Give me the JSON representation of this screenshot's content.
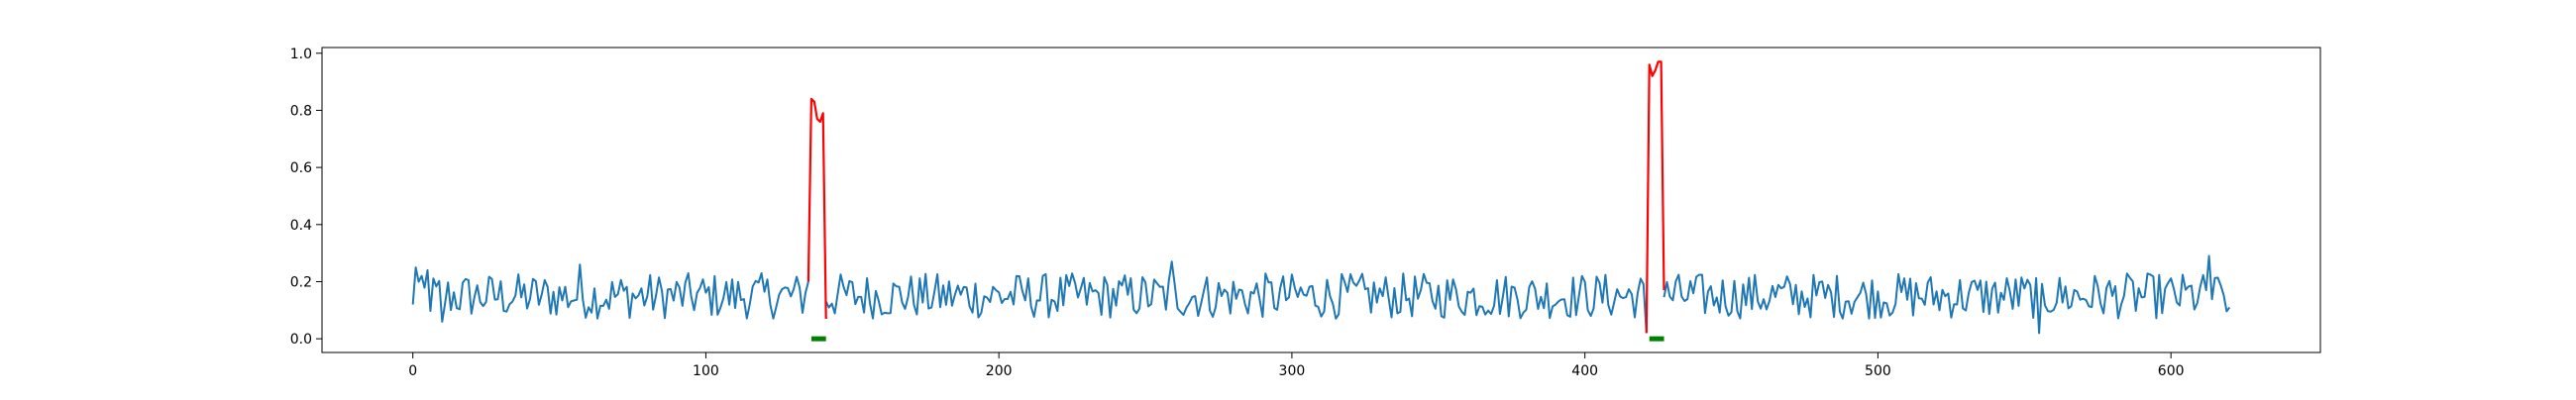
{
  "chart_data": {
    "type": "line",
    "title": "",
    "xlabel": "",
    "ylabel": "",
    "xlim": [
      -31,
      651
    ],
    "ylim": [
      -0.048,
      1.02
    ],
    "grid": false,
    "legend": "none",
    "xticks": [
      0,
      100,
      200,
      300,
      400,
      500,
      600
    ],
    "yticks": [
      0.0,
      0.2,
      0.4,
      0.6,
      0.8,
      1.0
    ],
    "xtick_labels": [
      "0",
      "100",
      "200",
      "300",
      "400",
      "500",
      "600"
    ],
    "ytick_labels": [
      "0.0",
      "0.2",
      "0.4",
      "0.6",
      "0.8",
      "1.0"
    ],
    "n_points": 621,
    "baseline_mean": 0.15,
    "baseline_spread": 0.08,
    "series": [
      {
        "role": "signal",
        "color": "#1f77b4",
        "x_range": [
          0,
          620
        ],
        "sample_points": [
          {
            "x": 0,
            "y": 0.12
          },
          {
            "x": 1,
            "y": 0.25
          },
          {
            "x": 2,
            "y": 0.2
          },
          {
            "x": 3,
            "y": 0.22
          },
          {
            "x": 5,
            "y": 0.24
          },
          {
            "x": 10,
            "y": 0.06
          },
          {
            "x": 57,
            "y": 0.26
          },
          {
            "x": 135,
            "y": 0.2
          },
          {
            "x": 140,
            "y": 0.07
          },
          {
            "x": 259,
            "y": 0.27
          },
          {
            "x": 421,
            "y": 0.02
          },
          {
            "x": 555,
            "y": 0.02
          },
          {
            "x": 613,
            "y": 0.29
          },
          {
            "x": 620,
            "y": 0.11
          }
        ]
      },
      {
        "role": "anomaly",
        "color": "#ff0000",
        "segments": [
          {
            "x": [
              135,
              136,
              137,
              138,
              139,
              140,
              141
            ],
            "y": [
              0.2,
              0.84,
              0.83,
              0.77,
              0.76,
              0.79,
              0.07
            ]
          },
          {
            "x": [
              421,
              422,
              423,
              424,
              425,
              426,
              427
            ],
            "y": [
              0.02,
              0.96,
              0.92,
              0.94,
              0.97,
              0.97,
              0.17
            ]
          }
        ]
      },
      {
        "role": "marker",
        "color": "#008000",
        "segments": [
          {
            "x": [
              136,
              141
            ],
            "y": [
              0.0,
              0.0
            ]
          },
          {
            "x": [
              422,
              427
            ],
            "y": [
              0.0,
              0.0
            ]
          }
        ]
      }
    ]
  }
}
